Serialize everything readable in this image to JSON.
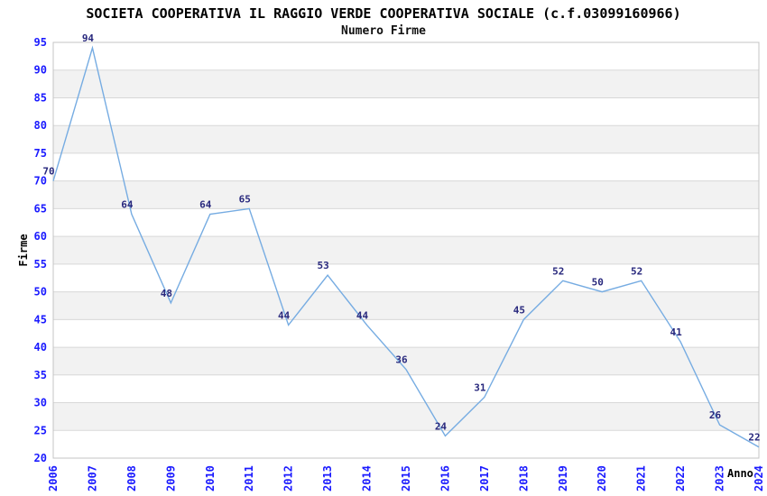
{
  "chart_data": {
    "type": "line",
    "title": "SOCIETA COOPERATIVA IL RAGGIO VERDE COOPERATIVA SOCIALE (c.f.03099160966)",
    "subtitle": "Numero Firme",
    "x": [
      "2006",
      "2007",
      "2008",
      "2009",
      "2010",
      "2011",
      "2012",
      "2013",
      "2014",
      "2015",
      "2016",
      "2017",
      "2018",
      "2019",
      "2020",
      "2021",
      "2022",
      "2023",
      "2024"
    ],
    "values": [
      70,
      94,
      64,
      48,
      64,
      65,
      44,
      53,
      44,
      36,
      24,
      31,
      45,
      52,
      50,
      52,
      41,
      26,
      22
    ],
    "xlabel": "Anno",
    "ylabel": "Firme",
    "ylim": [
      20,
      95
    ],
    "ytick_step": 5,
    "grid": true,
    "legend": "none",
    "band_fill_intervals": "alternating 5-unit bands starting gray at 25-30",
    "colors": {
      "line": "#76ace2",
      "tick_label": "#1a1aff",
      "data_label": "#28287d",
      "band": "#f2f2f2",
      "grid": "#d8d8d8",
      "border": "#c4c4c4",
      "text": "#000000"
    }
  }
}
